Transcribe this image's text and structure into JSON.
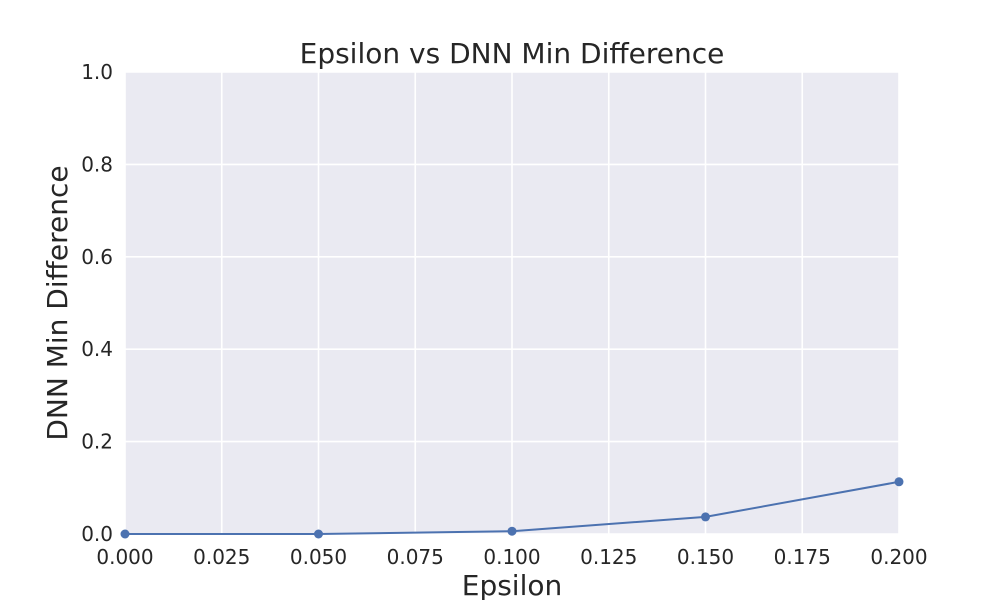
{
  "chart_data": {
    "type": "line",
    "title": "Epsilon vs DNN Min Difference",
    "xlabel": "Epsilon",
    "ylabel": "DNN Min Difference",
    "xlim": [
      0.0,
      0.2
    ],
    "ylim": [
      0.0,
      1.0
    ],
    "x_ticks": [
      "0.000",
      "0.025",
      "0.050",
      "0.075",
      "0.100",
      "0.125",
      "0.150",
      "0.175",
      "0.200"
    ],
    "y_ticks": [
      "0.0",
      "0.2",
      "0.4",
      "0.6",
      "0.8",
      "1.0"
    ],
    "grid": true,
    "background_color": "#EAEAF2",
    "grid_color": "#FFFFFF",
    "series": [
      {
        "color": "#4C72B0",
        "marker": "circle",
        "x": [
          0.0,
          0.05,
          0.1,
          0.15,
          0.2
        ],
        "y": [
          0.0,
          0.0,
          0.006,
          0.037,
          0.113
        ]
      }
    ]
  }
}
